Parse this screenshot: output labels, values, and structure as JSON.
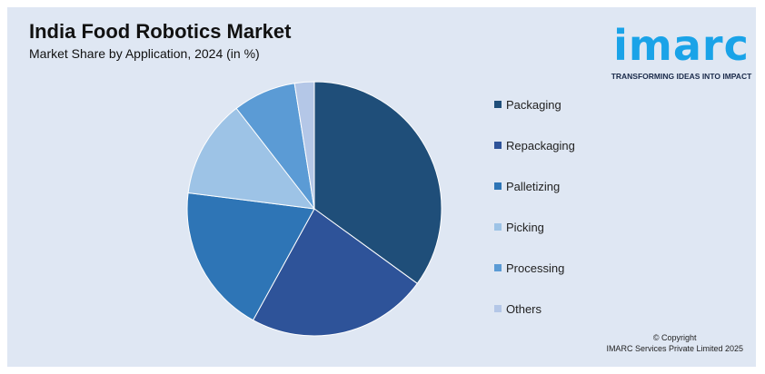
{
  "header": {
    "title": "India Food Robotics Market",
    "subtitle": "Market Share by Application, 2024 (in %)"
  },
  "logo": {
    "wordmark": "imarc",
    "tagline": "TRANSFORMING IDEAS INTO IMPACT",
    "color": "#1aa3e8"
  },
  "footer": {
    "copyright": "© Copyright",
    "company": "IMARC Services Private Limited 2025"
  },
  "chart_data": {
    "type": "pie",
    "categories": [
      "Packaging",
      "Repackaging",
      "Palletizing",
      "Picking",
      "Processing",
      "Others"
    ],
    "values": [
      35,
      23,
      19,
      12.5,
      8,
      2.5
    ],
    "colors": [
      "#1f4e79",
      "#2e5399",
      "#2e75b6",
      "#9dc3e6",
      "#5b9bd5",
      "#b4c7e7"
    ],
    "legend_position": "right",
    "start_angle_deg": 0,
    "direction": "clockwise"
  }
}
